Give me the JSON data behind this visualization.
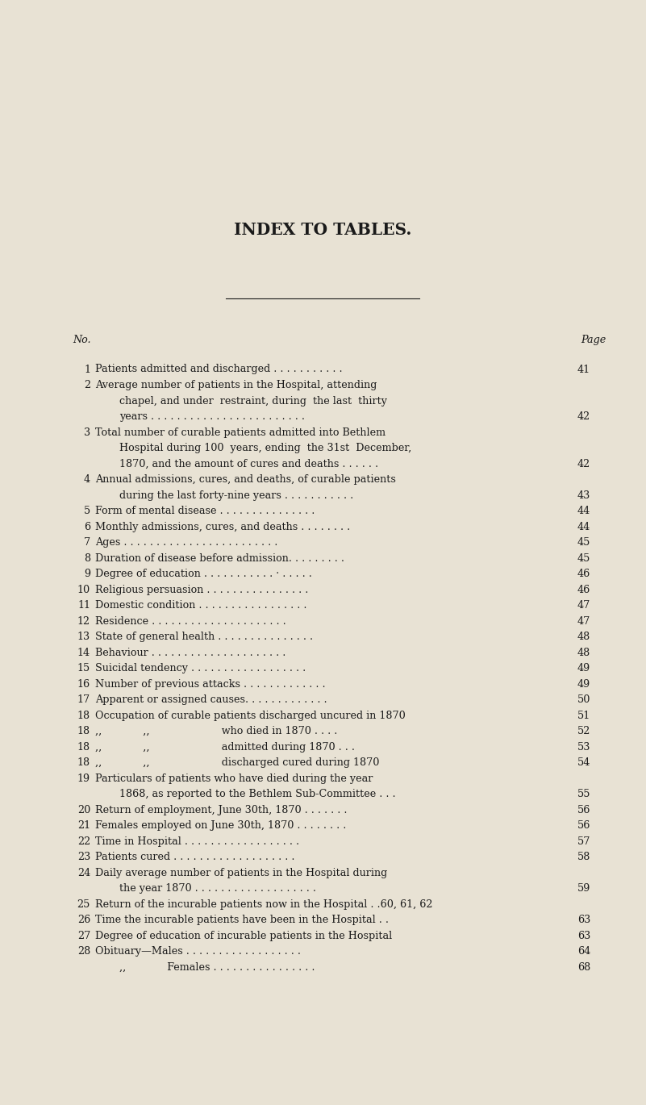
{
  "bg_color": "#e8e2d4",
  "title": "INDEX TO TABLES.",
  "text_color": "#1a1a1a",
  "title_fontsize": 14.5,
  "body_fontsize": 9.2,
  "entries": [
    {
      "no": "1",
      "cont": false,
      "text": "Patients admitted and discharged . . . . . . . . . . .",
      "page": "41"
    },
    {
      "no": "2",
      "cont": false,
      "text": "Average number of patients in the Hospital, attending",
      "page": ""
    },
    {
      "no": "",
      "cont": true,
      "text": "chapel, and under  restraint, during  the last  thirty",
      "page": ""
    },
    {
      "no": "",
      "cont": true,
      "text": "years . . . . . . . . . . . . . . . . . . . . . . . .",
      "page": "42"
    },
    {
      "no": "3",
      "cont": false,
      "text": "Total number of curable patients admitted into Bethlem",
      "page": ""
    },
    {
      "no": "",
      "cont": true,
      "text": "Hospital during 100  years, ending  the 31st  December,",
      "page": ""
    },
    {
      "no": "",
      "cont": true,
      "text": "1870, and the amount of cures and deaths . . . . . .",
      "page": "42"
    },
    {
      "no": "4",
      "cont": false,
      "text": "Annual admissions, cures, and deaths, of curable patients",
      "page": ""
    },
    {
      "no": "",
      "cont": true,
      "text": "during the last forty-nine years . . . . . . . . . . .",
      "page": "43"
    },
    {
      "no": "5",
      "cont": false,
      "text": "Form of mental disease . . . . . . . . . . . . . . .",
      "page": "44"
    },
    {
      "no": "6",
      "cont": false,
      "text": "Monthly admissions, cures, and deaths . . . . . . . .",
      "page": "44"
    },
    {
      "no": "7",
      "cont": false,
      "text": "Ages . . . . . . . . . . . . . . . . . . . . . . . .",
      "page": "45"
    },
    {
      "no": "8",
      "cont": false,
      "text": "Duration of disease before admission. . . . . . . . .",
      "page": "45"
    },
    {
      "no": "9",
      "cont": false,
      "text": "Degree of education . . . . . . . . . . . · . . . . .",
      "page": "46"
    },
    {
      "no": "10",
      "cont": false,
      "text": "Religious persuasion . . . . . . . . . . . . . . . .",
      "page": "46"
    },
    {
      "no": "11",
      "cont": false,
      "text": "Domestic condition . . . . . . . . . . . . . . . . .",
      "page": "47"
    },
    {
      "no": "12",
      "cont": false,
      "text": "Residence . . . . . . . . . . . . . . . . . . . . .",
      "page": "47"
    },
    {
      "no": "13",
      "cont": false,
      "text": "State of general health . . . . . . . . . . . . . . .",
      "page": "48"
    },
    {
      "no": "14",
      "cont": false,
      "text": "Behaviour . . . . . . . . . . . . . . . . . . . . .",
      "page": "48"
    },
    {
      "no": "15",
      "cont": false,
      "text": "Suicidal tendency . . . . . . . . . . . . . . . . . .",
      "page": "49"
    },
    {
      "no": "16",
      "cont": false,
      "text": "Number of previous attacks . . . . . . . . . . . . .",
      "page": "49"
    },
    {
      "no": "17",
      "cont": false,
      "text": "Apparent or assigned causes. . . . . . . . . . . . .",
      "page": "50"
    },
    {
      "no": "18",
      "cont": false,
      "text": "Occupation of curable patients discharged uncured in 1870",
      "page": "51"
    },
    {
      "no": "18",
      "cont": false,
      "text": ",,    ,,       who died in 1870 . . . .",
      "page": "52"
    },
    {
      "no": "18",
      "cont": false,
      "text": ",,    ,,       admitted during 1870 . . .",
      "page": "53"
    },
    {
      "no": "18",
      "cont": false,
      "text": ",,    ,,       discharged cured during 1870",
      "page": "54"
    },
    {
      "no": "19",
      "cont": false,
      "text": "Particulars of patients who have died during the year",
      "page": ""
    },
    {
      "no": "",
      "cont": true,
      "text": "1868, as reported to the Bethlem Sub-Committee . . .",
      "page": "55"
    },
    {
      "no": "20",
      "cont": false,
      "text": "Return of employment, June 30th, 1870 . . . . . . .",
      "page": "56"
    },
    {
      "no": "21",
      "cont": false,
      "text": "Females employed on June 30th, 1870 . . . . . . . .",
      "page": "56"
    },
    {
      "no": "22",
      "cont": false,
      "text": "Time in Hospital . . . . . . . . . . . . . . . . . .",
      "page": "57"
    },
    {
      "no": "23",
      "cont": false,
      "text": "Patients cured . . . . . . . . . . . . . . . . . . .",
      "page": "58"
    },
    {
      "no": "24",
      "cont": false,
      "text": "Daily average number of patients in the Hospital during",
      "page": ""
    },
    {
      "no": "",
      "cont": true,
      "text": "the year 1870 . . . . . . . . . . . . . . . . . . .",
      "page": "59"
    },
    {
      "no": "25",
      "cont": false,
      "text": "Return of the incurable patients now in the Hospital . .60, 61, 62",
      "page": ""
    },
    {
      "no": "26",
      "cont": false,
      "text": "Time the incurable patients have been in the Hospital . .",
      "page": "63"
    },
    {
      "no": "27",
      "cont": false,
      "text": "Degree of education of incurable patients in the Hospital",
      "page": "63"
    },
    {
      "no": "28",
      "cont": false,
      "text": "Obituary—Males . . . . . . . . . . . . . . . . . .",
      "page": "64"
    },
    {
      "no": "",
      "cont": true,
      "text": ",,    Females . . . . . . . . . . . . . . . .",
      "page": "68"
    }
  ]
}
